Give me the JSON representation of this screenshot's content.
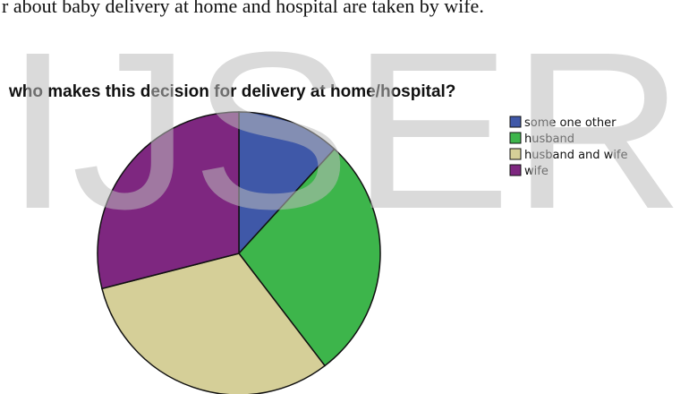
{
  "page_text": "r about baby delivery at home and hospital are taken by wife.",
  "watermark": "IJSER",
  "chart_data": {
    "type": "pie",
    "title": "who makes this decision for delivery at home/hospital?",
    "categories": [
      "some one other",
      "husband",
      "husband and wife",
      "wife"
    ],
    "values": [
      11.8,
      27.8,
      31.4,
      29.0
    ],
    "colors": [
      "#3f58a8",
      "#3db54b",
      "#d5cf98",
      "#7e2780"
    ],
    "legend": "right"
  }
}
